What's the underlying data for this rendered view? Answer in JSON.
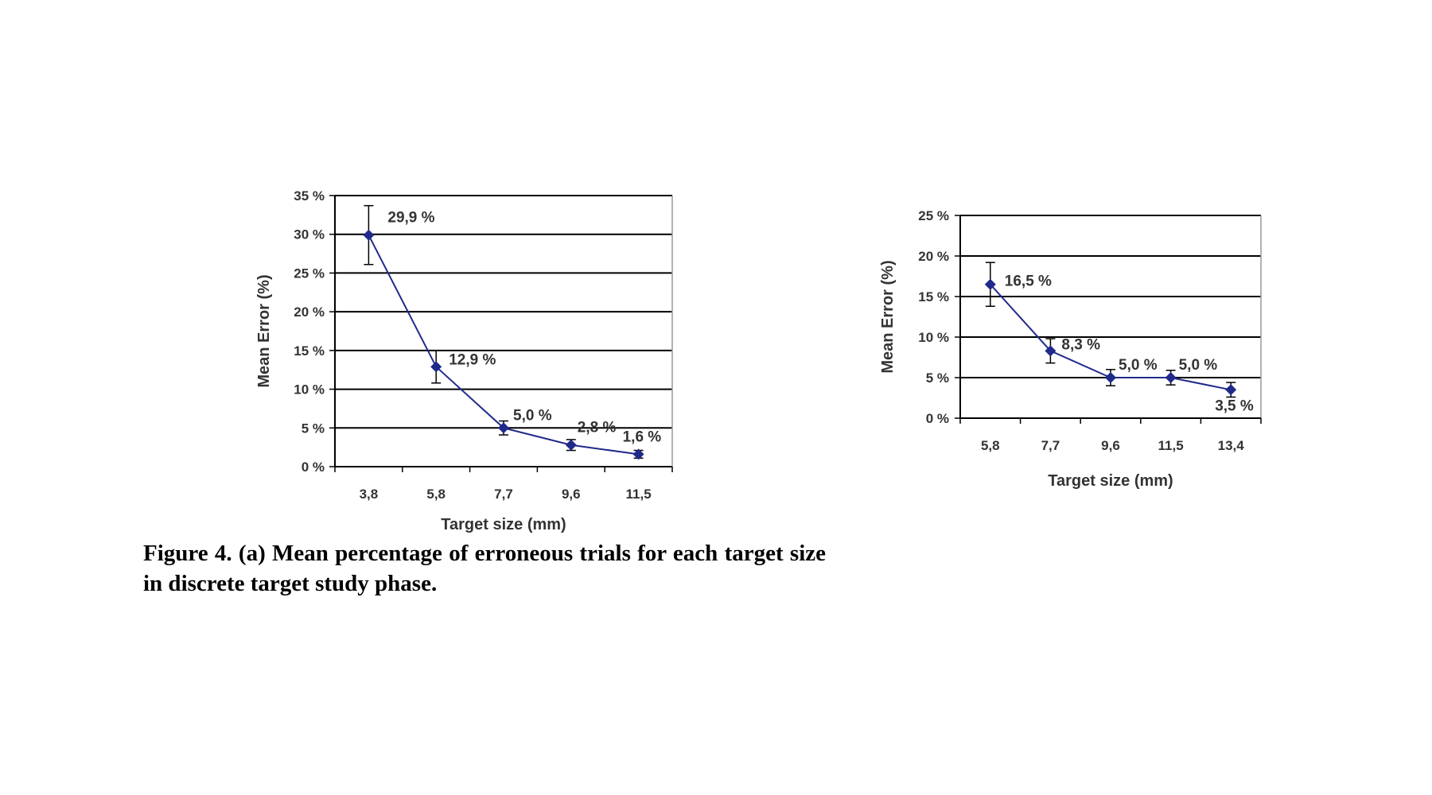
{
  "chart_data": [
    {
      "type": "line",
      "categories": [
        "3,8",
        "5,8",
        "7,7",
        "9,6",
        "11,5"
      ],
      "series": [
        {
          "values": [
            29.9,
            12.9,
            5.0,
            2.8,
            1.6
          ],
          "errors": [
            3.8,
            2.1,
            0.9,
            0.7,
            0.5
          ],
          "labels": [
            "29,9 %",
            "12,9 %",
            "5,0 %",
            "2,8 %",
            "1,6 %"
          ]
        }
      ],
      "xlabel": "Target size (mm)",
      "ylabel": "Mean Error (%)",
      "ylim": [
        0,
        35
      ],
      "yticks": [
        "0 %",
        "5 %",
        "10 %",
        "15 %",
        "20 %",
        "25 %",
        "30 %",
        "35 %"
      ],
      "grid": true,
      "color": "#1f2a8a"
    },
    {
      "type": "line",
      "categories": [
        "5,8",
        "7,7",
        "9,6",
        "11,5",
        "13,4"
      ],
      "series": [
        {
          "values": [
            16.5,
            8.3,
            5.0,
            5.0,
            3.5
          ],
          "errors": [
            2.7,
            1.5,
            1.0,
            0.9,
            0.9
          ],
          "labels": [
            "16,5 %",
            "8,3 %",
            "5,0 %",
            "5,0 %",
            "3,5 %"
          ]
        }
      ],
      "xlabel": "Target size (mm)",
      "ylabel": "Mean Error (%)",
      "ylim": [
        0,
        25
      ],
      "yticks": [
        "0 %",
        "5 %",
        "10 %",
        "15 %",
        "20 %",
        "25 %"
      ],
      "grid": true,
      "color": "#1f2a8a"
    }
  ],
  "caption": "Figure 4. (a) Mean percentage of erroneous trials for each target size in discrete target study phase."
}
